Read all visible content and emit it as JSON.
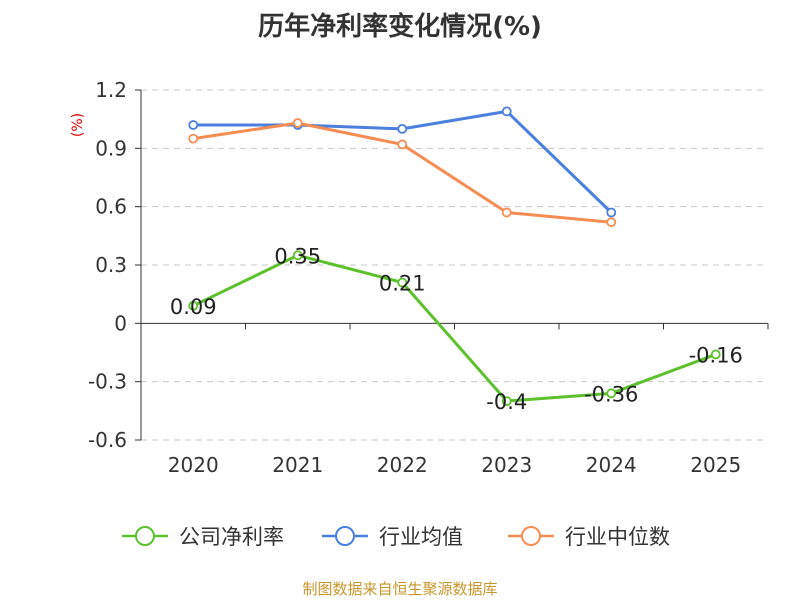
{
  "chart_data": {
    "type": "line",
    "title": "历年净利率变化情况(%)",
    "ylabel": "(%)",
    "categories": [
      "2020",
      "2021",
      "2022",
      "2023",
      "2024",
      "2025"
    ],
    "ylim": [
      -0.6,
      1.2
    ],
    "yticks": [
      "1.2",
      "0.9",
      "0.6",
      "0.3",
      "0",
      "-0.3",
      "-0.6"
    ],
    "ytick_values": [
      1.2,
      0.9,
      0.6,
      0.3,
      0,
      -0.3,
      -0.6
    ],
    "grid": true,
    "legend_position": "bottom",
    "series": [
      {
        "name": "公司净利率",
        "color": "#5cc12c",
        "values": [
          0.09,
          0.35,
          0.21,
          -0.4,
          -0.36,
          -0.16
        ],
        "labels": [
          "0.09",
          "0.35",
          "0.21",
          "-0.4",
          "-0.36",
          "-0.16"
        ]
      },
      {
        "name": "行业均值",
        "color": "#4a7fdd",
        "values": [
          1.02,
          1.02,
          1.0,
          1.09,
          0.57,
          null
        ]
      },
      {
        "name": "行业中位数",
        "color": "#f58c52",
        "values": [
          0.95,
          1.03,
          0.92,
          0.57,
          0.52,
          null
        ]
      }
    ]
  },
  "footer": {
    "source": "制图数据来自恒生聚源数据库"
  }
}
